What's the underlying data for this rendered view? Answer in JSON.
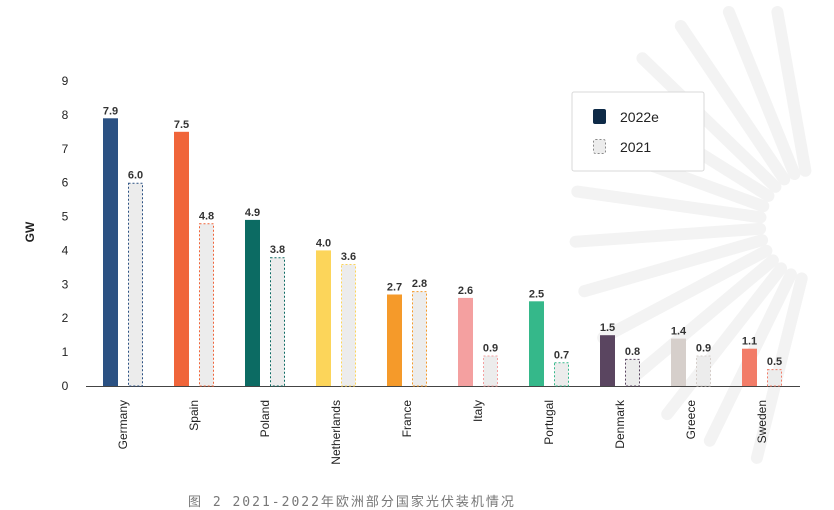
{
  "chart_data": {
    "type": "bar",
    "categories": [
      "Germany",
      "Spain",
      "Poland",
      "Netherlands",
      "France",
      "Italy",
      "Portugal",
      "Denmark",
      "Greece",
      "Sweden"
    ],
    "series": [
      {
        "name": "2022e",
        "values": [
          7.9,
          7.5,
          4.9,
          4.0,
          2.7,
          2.6,
          2.5,
          1.5,
          1.4,
          1.1
        ],
        "style": "solid",
        "color": "#0e2a47"
      },
      {
        "name": "2021",
        "values": [
          6.0,
          4.8,
          3.8,
          3.6,
          2.8,
          0.9,
          0.7,
          0.8,
          0.9,
          0.5
        ],
        "style": "dashed",
        "color": "#ececec",
        "border": "#8a8a8a"
      }
    ],
    "category_colors": [
      "#2b5183",
      "#f0653a",
      "#0c6b63",
      "#fcd55a",
      "#f59a2a",
      "#f4a0a0",
      "#35b88a",
      "#5a4560",
      "#d6cfcb",
      "#f27c68"
    ],
    "xlabel": "",
    "ylabel": "GW",
    "ylim": [
      0,
      9
    ],
    "yticks": [
      0,
      1,
      2,
      3,
      4,
      5,
      6,
      7,
      8,
      9
    ],
    "legend": "top-right",
    "grid": false
  },
  "caption": "图 2 2021-2022年欧洲部分国家光伏装机情况"
}
